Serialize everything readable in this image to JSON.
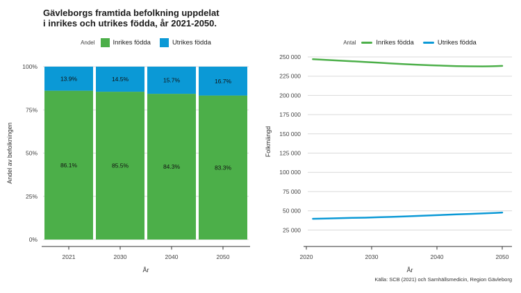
{
  "title": {
    "line1": "Gävleborgs framtida befolkning uppdelat",
    "line2": "i inrikes och utrikes födda, år 2021-2050."
  },
  "source": "Källa: SCB (2021) och Samhällsmedicin, Region Gävleborg",
  "colors": {
    "inrikes": "#4caf49",
    "utrikes": "#0b99d6",
    "grid": "#d9d9d9",
    "axis": "#333333",
    "label_text": "#111111"
  },
  "chart_data": [
    {
      "id": "andel",
      "type": "bar",
      "stacked": true,
      "legend_title": "Andel",
      "legend_position": "top",
      "grid": true,
      "categories": [
        "2021",
        "2030",
        "2040",
        "2050"
      ],
      "series": [
        {
          "name": "Inrikes födda",
          "color_key": "inrikes",
          "values": [
            86.1,
            85.5,
            84.3,
            83.3
          ],
          "labels": [
            "86.1%",
            "85.5%",
            "84.3%",
            "83.3%"
          ]
        },
        {
          "name": "Utrikes födda",
          "color_key": "utrikes",
          "values": [
            13.9,
            14.5,
            15.7,
            16.7
          ],
          "labels": [
            "13.9%",
            "14.5%",
            "15.7%",
            "16.7%"
          ]
        }
      ],
      "xlabel": "År",
      "ylabel": "Andel av befolkningen",
      "ylim": [
        0,
        100
      ],
      "yticks": [
        {
          "value": 0,
          "label": "0%"
        },
        {
          "value": 25,
          "label": "25%"
        },
        {
          "value": 50,
          "label": "50%"
        },
        {
          "value": 75,
          "label": "75%"
        },
        {
          "value": 100,
          "label": "100%"
        }
      ]
    },
    {
      "id": "antal",
      "type": "line",
      "legend_title": "Antal",
      "legend_position": "top",
      "grid": true,
      "xlabel": "År",
      "ylabel": "Folkmängd",
      "xlim": [
        2020,
        2050
      ],
      "ylim": [
        25000,
        250000
      ],
      "xticks": [
        {
          "value": 2020,
          "label": "2020"
        },
        {
          "value": 2030,
          "label": "2030"
        },
        {
          "value": 2040,
          "label": "2040"
        },
        {
          "value": 2050,
          "label": "2050"
        }
      ],
      "yticks": [
        {
          "value": 25000,
          "label": "25 000"
        },
        {
          "value": 50000,
          "label": "50 000"
        },
        {
          "value": 75000,
          "label": "75 000"
        },
        {
          "value": 100000,
          "label": "100 000"
        },
        {
          "value": 125000,
          "label": "125 000"
        },
        {
          "value": 150000,
          "label": "150 000"
        },
        {
          "value": 175000,
          "label": "175 000"
        },
        {
          "value": 200000,
          "label": "200 000"
        },
        {
          "value": 225000,
          "label": "225 000"
        },
        {
          "value": 250000,
          "label": "250 000"
        }
      ],
      "series": [
        {
          "name": "Inrikes födda",
          "color_key": "inrikes",
          "points": [
            [
              2021,
              247000
            ],
            [
              2023,
              246200
            ],
            [
              2025,
              245300
            ],
            [
              2027,
              244400
            ],
            [
              2029,
              243500
            ],
            [
              2031,
              242500
            ],
            [
              2033,
              241500
            ],
            [
              2035,
              240600
            ],
            [
              2037,
              239800
            ],
            [
              2039,
              239200
            ],
            [
              2041,
              238600
            ],
            [
              2043,
              238100
            ],
            [
              2045,
              237800
            ],
            [
              2047,
              237700
            ],
            [
              2048,
              237800
            ],
            [
              2049,
              238000
            ],
            [
              2050,
              238400
            ]
          ]
        },
        {
          "name": "Utrikes födda",
          "color_key": "utrikes",
          "points": [
            [
              2021,
              39600
            ],
            [
              2023,
              39900
            ],
            [
              2025,
              40300
            ],
            [
              2027,
              40800
            ],
            [
              2029,
              41100
            ],
            [
              2031,
              41600
            ],
            [
              2033,
              42100
            ],
            [
              2035,
              42700
            ],
            [
              2037,
              43300
            ],
            [
              2039,
              44000
            ],
            [
              2041,
              44700
            ],
            [
              2043,
              45300
            ],
            [
              2045,
              45900
            ],
            [
              2047,
              46600
            ],
            [
              2049,
              47300
            ],
            [
              2050,
              47700
            ]
          ]
        }
      ]
    }
  ]
}
